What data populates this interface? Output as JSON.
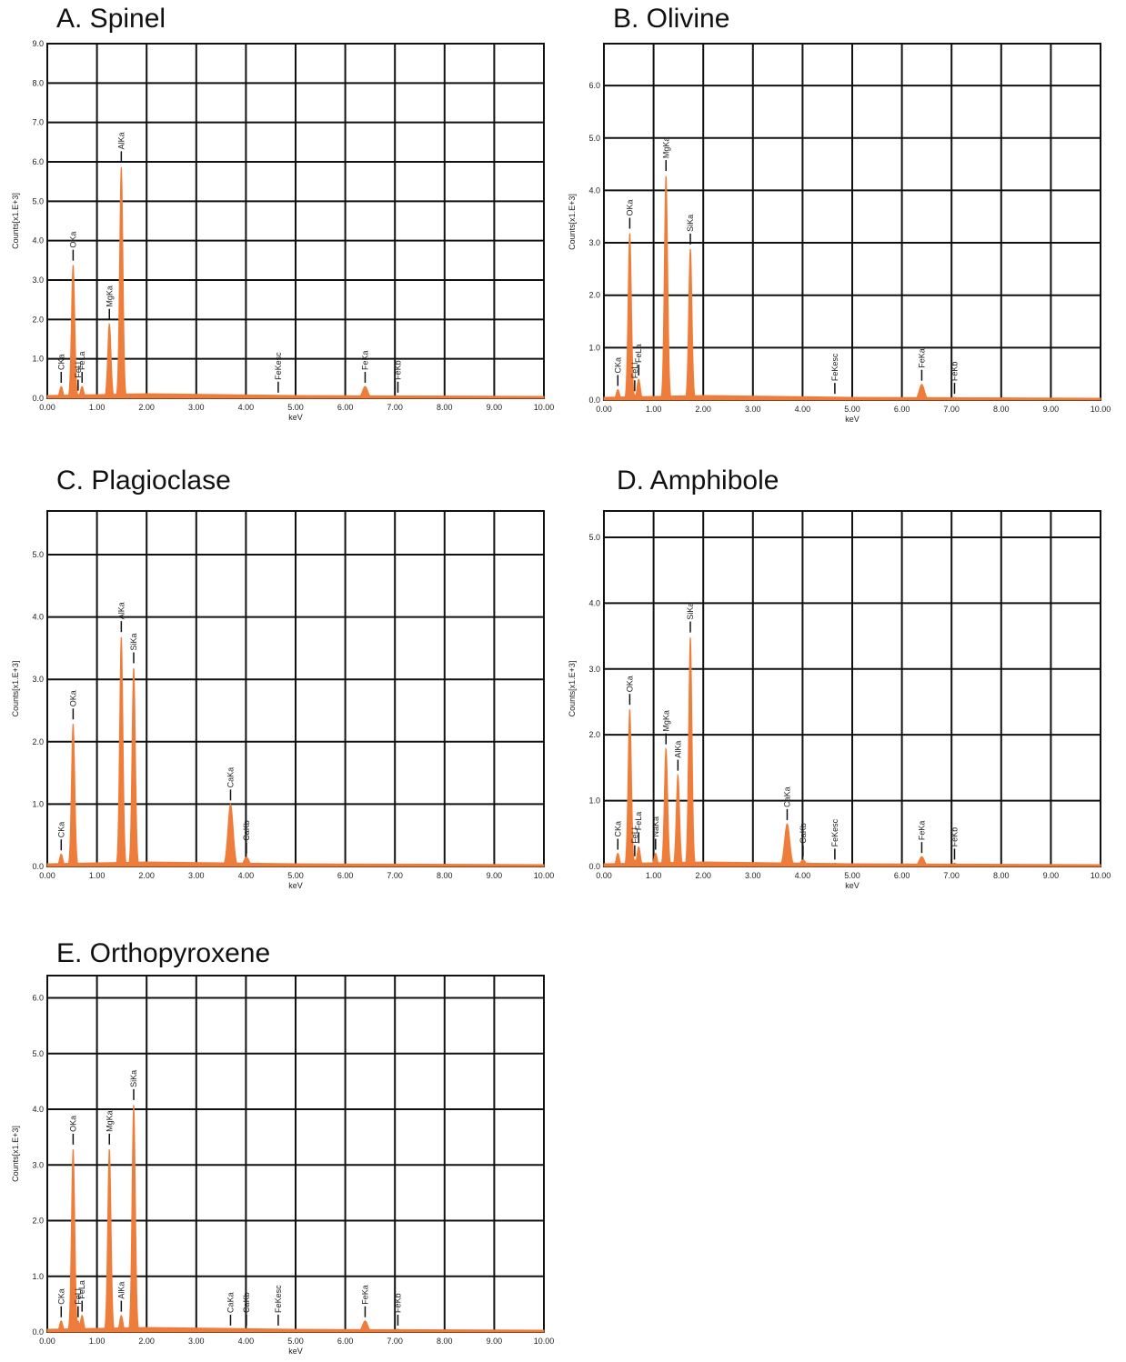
{
  "chart_data": [
    {
      "type": "spectrum",
      "title": "A. Spinel",
      "xlabel": "keV",
      "ylabel": "Counts[x1.E+3]",
      "color": "#ee7d3b",
      "grid": true,
      "xlim": [
        0,
        10
      ],
      "xticks": [
        {
          "value": 0,
          "label": "0.00"
        },
        {
          "value": 1,
          "label": "1.00"
        },
        {
          "value": 2,
          "label": "2.00"
        },
        {
          "value": 3,
          "label": "3.00"
        },
        {
          "value": 4,
          "label": "4.00"
        },
        {
          "value": 5,
          "label": "5.00"
        },
        {
          "value": 6,
          "label": "6.00"
        },
        {
          "value": 7,
          "label": "7.00"
        },
        {
          "value": 8,
          "label": "8.00"
        },
        {
          "value": 9,
          "label": "9.00"
        },
        {
          "value": 10,
          "label": "10.00"
        }
      ],
      "ylim": [
        0,
        9
      ],
      "yticks": [
        {
          "value": 0,
          "label": "0.0"
        },
        {
          "value": 1,
          "label": "1.0"
        },
        {
          "value": 2,
          "label": "2.0"
        },
        {
          "value": 3,
          "label": "3.0"
        },
        {
          "value": 4,
          "label": "4.0"
        },
        {
          "value": 5,
          "label": "5.0"
        },
        {
          "value": 6,
          "label": "6.0"
        },
        {
          "value": 7,
          "label": "7.0"
        },
        {
          "value": 8,
          "label": "8.0"
        },
        {
          "value": 9,
          "label": "9.0"
        }
      ],
      "labels": [
        "CKa",
        "OKa",
        "FeLl",
        "FeLa",
        "MgKa",
        "AlKa",
        "FeKesc",
        "FeKa",
        "FeKb"
      ],
      "x": [
        0.28,
        0.52,
        0.62,
        0.7,
        1.25,
        1.49,
        4.65,
        6.4,
        7.06
      ],
      "values": [
        0.3,
        3.4,
        0.1,
        0.3,
        1.9,
        5.9,
        0.05,
        0.3,
        0.05
      ]
    },
    {
      "type": "spectrum",
      "title": "B. Olivine",
      "xlabel": "keV",
      "ylabel": "Counts[x1.E+3]",
      "color": "#ee7d3b",
      "grid": true,
      "xlim": [
        0,
        10
      ],
      "xticks": [
        {
          "value": 0,
          "label": "0.00"
        },
        {
          "value": 1,
          "label": "1.00"
        },
        {
          "value": 2,
          "label": "2.00"
        },
        {
          "value": 3,
          "label": "3.00"
        },
        {
          "value": 4,
          "label": "4.00"
        },
        {
          "value": 5,
          "label": "5.00"
        },
        {
          "value": 6,
          "label": "6.00"
        },
        {
          "value": 7,
          "label": "7.00"
        },
        {
          "value": 8,
          "label": "8.00"
        },
        {
          "value": 9,
          "label": "9.00"
        },
        {
          "value": 10,
          "label": "10.00"
        }
      ],
      "ylim": [
        0,
        6.8
      ],
      "yticks": [
        {
          "value": 0,
          "label": "0.0"
        },
        {
          "value": 1,
          "label": "1.0"
        },
        {
          "value": 2,
          "label": "2.0"
        },
        {
          "value": 3,
          "label": "3.0"
        },
        {
          "value": 4,
          "label": "4.0"
        },
        {
          "value": 5,
          "label": "5.0"
        },
        {
          "value": 6,
          "label": "6.0"
        }
      ],
      "labels": [
        "CKa",
        "OKa",
        "FeLl",
        "FeLa",
        "MgKa",
        "SiKa",
        "FeKesc",
        "FeKa",
        "FeKb"
      ],
      "x": [
        0.28,
        0.52,
        0.62,
        0.7,
        1.25,
        1.74,
        4.65,
        6.4,
        7.06
      ],
      "values": [
        0.2,
        3.2,
        0.1,
        0.4,
        4.3,
        2.9,
        0.05,
        0.3,
        0.05
      ]
    },
    {
      "type": "spectrum",
      "title": "C. Plagioclase",
      "xlabel": "keV",
      "ylabel": "Counts[x1.E+3]",
      "color": "#ee7d3b",
      "grid": true,
      "xlim": [
        0,
        10
      ],
      "xticks": [
        {
          "value": 0,
          "label": "0.00"
        },
        {
          "value": 1,
          "label": "1.00"
        },
        {
          "value": 2,
          "label": "2.00"
        },
        {
          "value": 3,
          "label": "3.00"
        },
        {
          "value": 4,
          "label": "4.00"
        },
        {
          "value": 5,
          "label": "5.00"
        },
        {
          "value": 6,
          "label": "6.00"
        },
        {
          "value": 7,
          "label": "7.00"
        },
        {
          "value": 8,
          "label": "8.00"
        },
        {
          "value": 9,
          "label": "9.00"
        },
        {
          "value": 10,
          "label": "10.00"
        }
      ],
      "ylim": [
        0,
        5.7
      ],
      "yticks": [
        {
          "value": 0,
          "label": "0.0"
        },
        {
          "value": 1,
          "label": "1.0"
        },
        {
          "value": 2,
          "label": "2.0"
        },
        {
          "value": 3,
          "label": "3.0"
        },
        {
          "value": 4,
          "label": "4.0"
        },
        {
          "value": 5,
          "label": "5.0"
        }
      ],
      "labels": [
        "CKa",
        "OKa",
        "AlKa",
        "SiKa",
        "CaKa",
        "CaKb"
      ],
      "x": [
        0.28,
        0.52,
        1.49,
        1.74,
        3.69,
        4.01
      ],
      "values": [
        0.2,
        2.3,
        3.7,
        3.2,
        1.0,
        0.15
      ]
    },
    {
      "type": "spectrum",
      "title": "D. Amphibole",
      "xlabel": "keV",
      "ylabel": "Counts[x1.E+3]",
      "color": "#ee7d3b",
      "grid": true,
      "xlim": [
        0,
        10
      ],
      "xticks": [
        {
          "value": 0,
          "label": "0.00"
        },
        {
          "value": 1,
          "label": "1.00"
        },
        {
          "value": 2,
          "label": "2.00"
        },
        {
          "value": 3,
          "label": "3.00"
        },
        {
          "value": 4,
          "label": "4.00"
        },
        {
          "value": 5,
          "label": "5.00"
        },
        {
          "value": 6,
          "label": "6.00"
        },
        {
          "value": 7,
          "label": "7.00"
        },
        {
          "value": 8,
          "label": "8.00"
        },
        {
          "value": 9,
          "label": "9.00"
        },
        {
          "value": 10,
          "label": "10.00"
        }
      ],
      "ylim": [
        0,
        5.4
      ],
      "yticks": [
        {
          "value": 0,
          "label": "0.0"
        },
        {
          "value": 1,
          "label": "1.0"
        },
        {
          "value": 2,
          "label": "2.0"
        },
        {
          "value": 3,
          "label": "3.0"
        },
        {
          "value": 4,
          "label": "4.0"
        },
        {
          "value": 5,
          "label": "5.0"
        }
      ],
      "labels": [
        "CKa",
        "OKa",
        "FeLl",
        "FeLa",
        "NaKa",
        "MgKa",
        "AlKa",
        "SiKa",
        "CaKa",
        "CaKb",
        "FeKesc",
        "FeKa",
        "FeKb"
      ],
      "x": [
        0.28,
        0.52,
        0.62,
        0.7,
        1.04,
        1.25,
        1.49,
        1.74,
        3.69,
        4.01,
        4.65,
        6.4,
        7.06
      ],
      "values": [
        0.2,
        2.4,
        0.1,
        0.3,
        0.2,
        1.8,
        1.4,
        3.5,
        0.65,
        0.1,
        0.05,
        0.15,
        0.05
      ]
    },
    {
      "type": "spectrum",
      "title": "E. Orthopyroxene",
      "xlabel": "keV",
      "ylabel": "Counts[x1.E+3]",
      "color": "#ee7d3b",
      "grid": true,
      "xlim": [
        0,
        10
      ],
      "xticks": [
        {
          "value": 0,
          "label": "0.00"
        },
        {
          "value": 1,
          "label": "1.00"
        },
        {
          "value": 2,
          "label": "2.00"
        },
        {
          "value": 3,
          "label": "3.00"
        },
        {
          "value": 4,
          "label": "4.00"
        },
        {
          "value": 5,
          "label": "5.00"
        },
        {
          "value": 6,
          "label": "6.00"
        },
        {
          "value": 7,
          "label": "7.00"
        },
        {
          "value": 8,
          "label": "8.00"
        },
        {
          "value": 9,
          "label": "9.00"
        },
        {
          "value": 10,
          "label": "10.00"
        }
      ],
      "ylim": [
        0,
        6.4
      ],
      "yticks": [
        {
          "value": 0,
          "label": "0.0"
        },
        {
          "value": 1,
          "label": "1.0"
        },
        {
          "value": 2,
          "label": "2.0"
        },
        {
          "value": 3,
          "label": "3.0"
        },
        {
          "value": 4,
          "label": "4.0"
        },
        {
          "value": 5,
          "label": "5.0"
        },
        {
          "value": 6,
          "label": "6.0"
        }
      ],
      "labels": [
        "CKa",
        "OKa",
        "FeLl",
        "FeLa",
        "MgKa",
        "AlKa",
        "SiKa",
        "CaKa",
        "CaKb",
        "FeKesc",
        "FeKa",
        "FeKb"
      ],
      "x": [
        0.28,
        0.52,
        0.62,
        0.7,
        1.25,
        1.49,
        1.74,
        3.69,
        4.01,
        4.65,
        6.4,
        7.06
      ],
      "values": [
        0.2,
        3.3,
        0.2,
        0.3,
        3.3,
        0.3,
        4.1,
        0.05,
        0.05,
        0.05,
        0.2,
        0.05
      ]
    }
  ]
}
